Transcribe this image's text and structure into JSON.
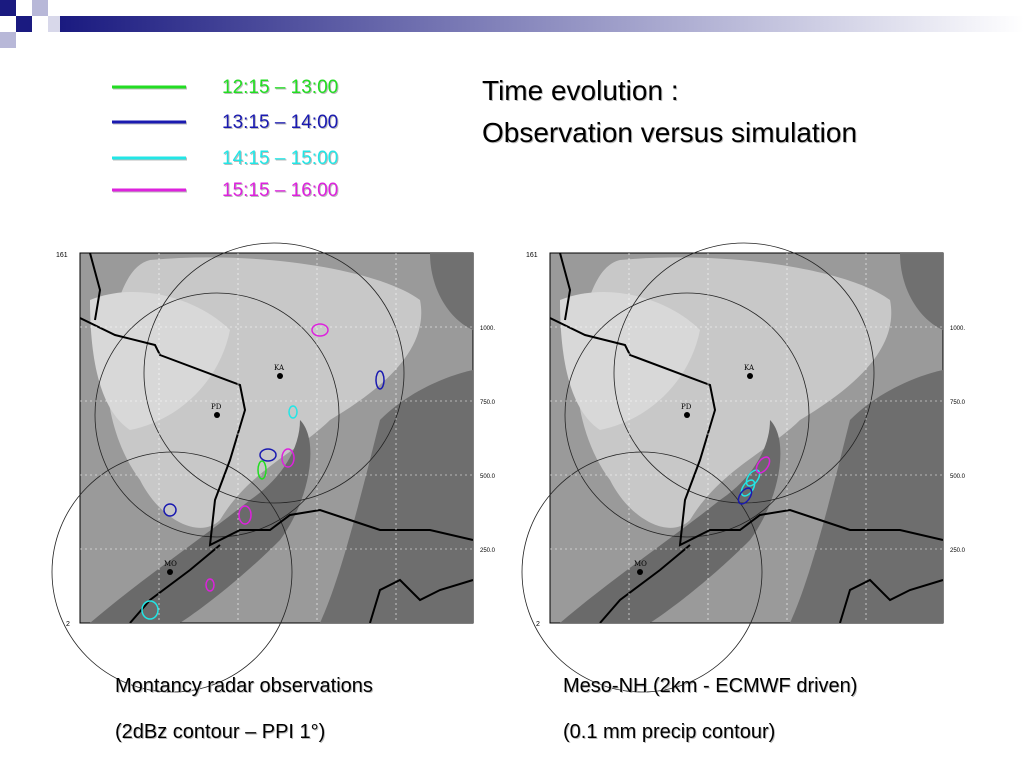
{
  "header": {
    "title_lines": [
      "Time evolution :",
      "Observation versus simulation"
    ]
  },
  "legend": [
    {
      "label": "12:15 – 13:00",
      "color": "#22dd22"
    },
    {
      "label": "13:15 – 14:00",
      "color": "#1a1ab0"
    },
    {
      "label": "14:15 – 15:00",
      "color": "#22e6e6"
    },
    {
      "label": "15:15 – 16:00",
      "color": "#dd22dd"
    }
  ],
  "panels": [
    {
      "axis_top": "161",
      "axis_bottom": "2",
      "stations": [
        "KA",
        "PD",
        "MO"
      ],
      "scale_labels": [
        "1000.",
        "750.0",
        "500.0",
        "250.0"
      ],
      "caption_lines": [
        "Montancy radar observations",
        "(2dBz contour – PPI 1°)"
      ]
    },
    {
      "axis_top": "161",
      "axis_bottom": "2",
      "stations": [
        "KA",
        "PD",
        "MO"
      ],
      "scale_labels": [
        "1000.",
        "750.0",
        "500.0",
        "250.0"
      ],
      "caption_lines": [
        "Meso-NH (2km - ECMWF driven)",
        "(0.1 mm  precip contour)"
      ]
    }
  ]
}
